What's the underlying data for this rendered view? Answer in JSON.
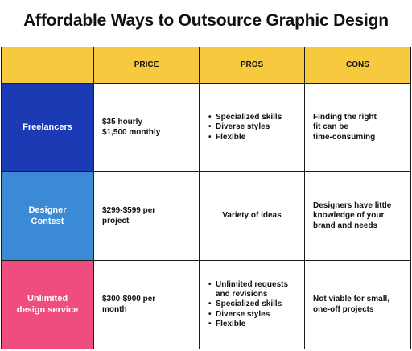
{
  "title": "Affordable Ways to Outsource Graphic Design",
  "table": {
    "headers": [
      "",
      "PRICE",
      "PROS",
      "CONS"
    ],
    "rows": [
      {
        "option": "Freelancers",
        "color": "#1b3ab4",
        "price": "$35 hourly\n$1,500 monthly",
        "pros": [
          "Specialized skills",
          "Diverse styles",
          "Flexible"
        ],
        "cons": "Finding the right\nfit can be\ntime-consuming"
      },
      {
        "option": "Designer\nContest",
        "color": "#3b8ad6",
        "price": "$299-$599 per\nproject",
        "pros_text": "Variety of ideas",
        "cons": "Designers have little\nknowledge of your\nbrand and needs"
      },
      {
        "option": "Unlimited\ndesign service",
        "color": "#ef4d7f",
        "price": "$300-$900 per\nmonth",
        "pros": [
          "Unlimited requests\nand revisions",
          "Specialized skills",
          "Diverse styles",
          "Flexible"
        ],
        "cons": "Not viable for small,\none-off projects"
      }
    ]
  }
}
